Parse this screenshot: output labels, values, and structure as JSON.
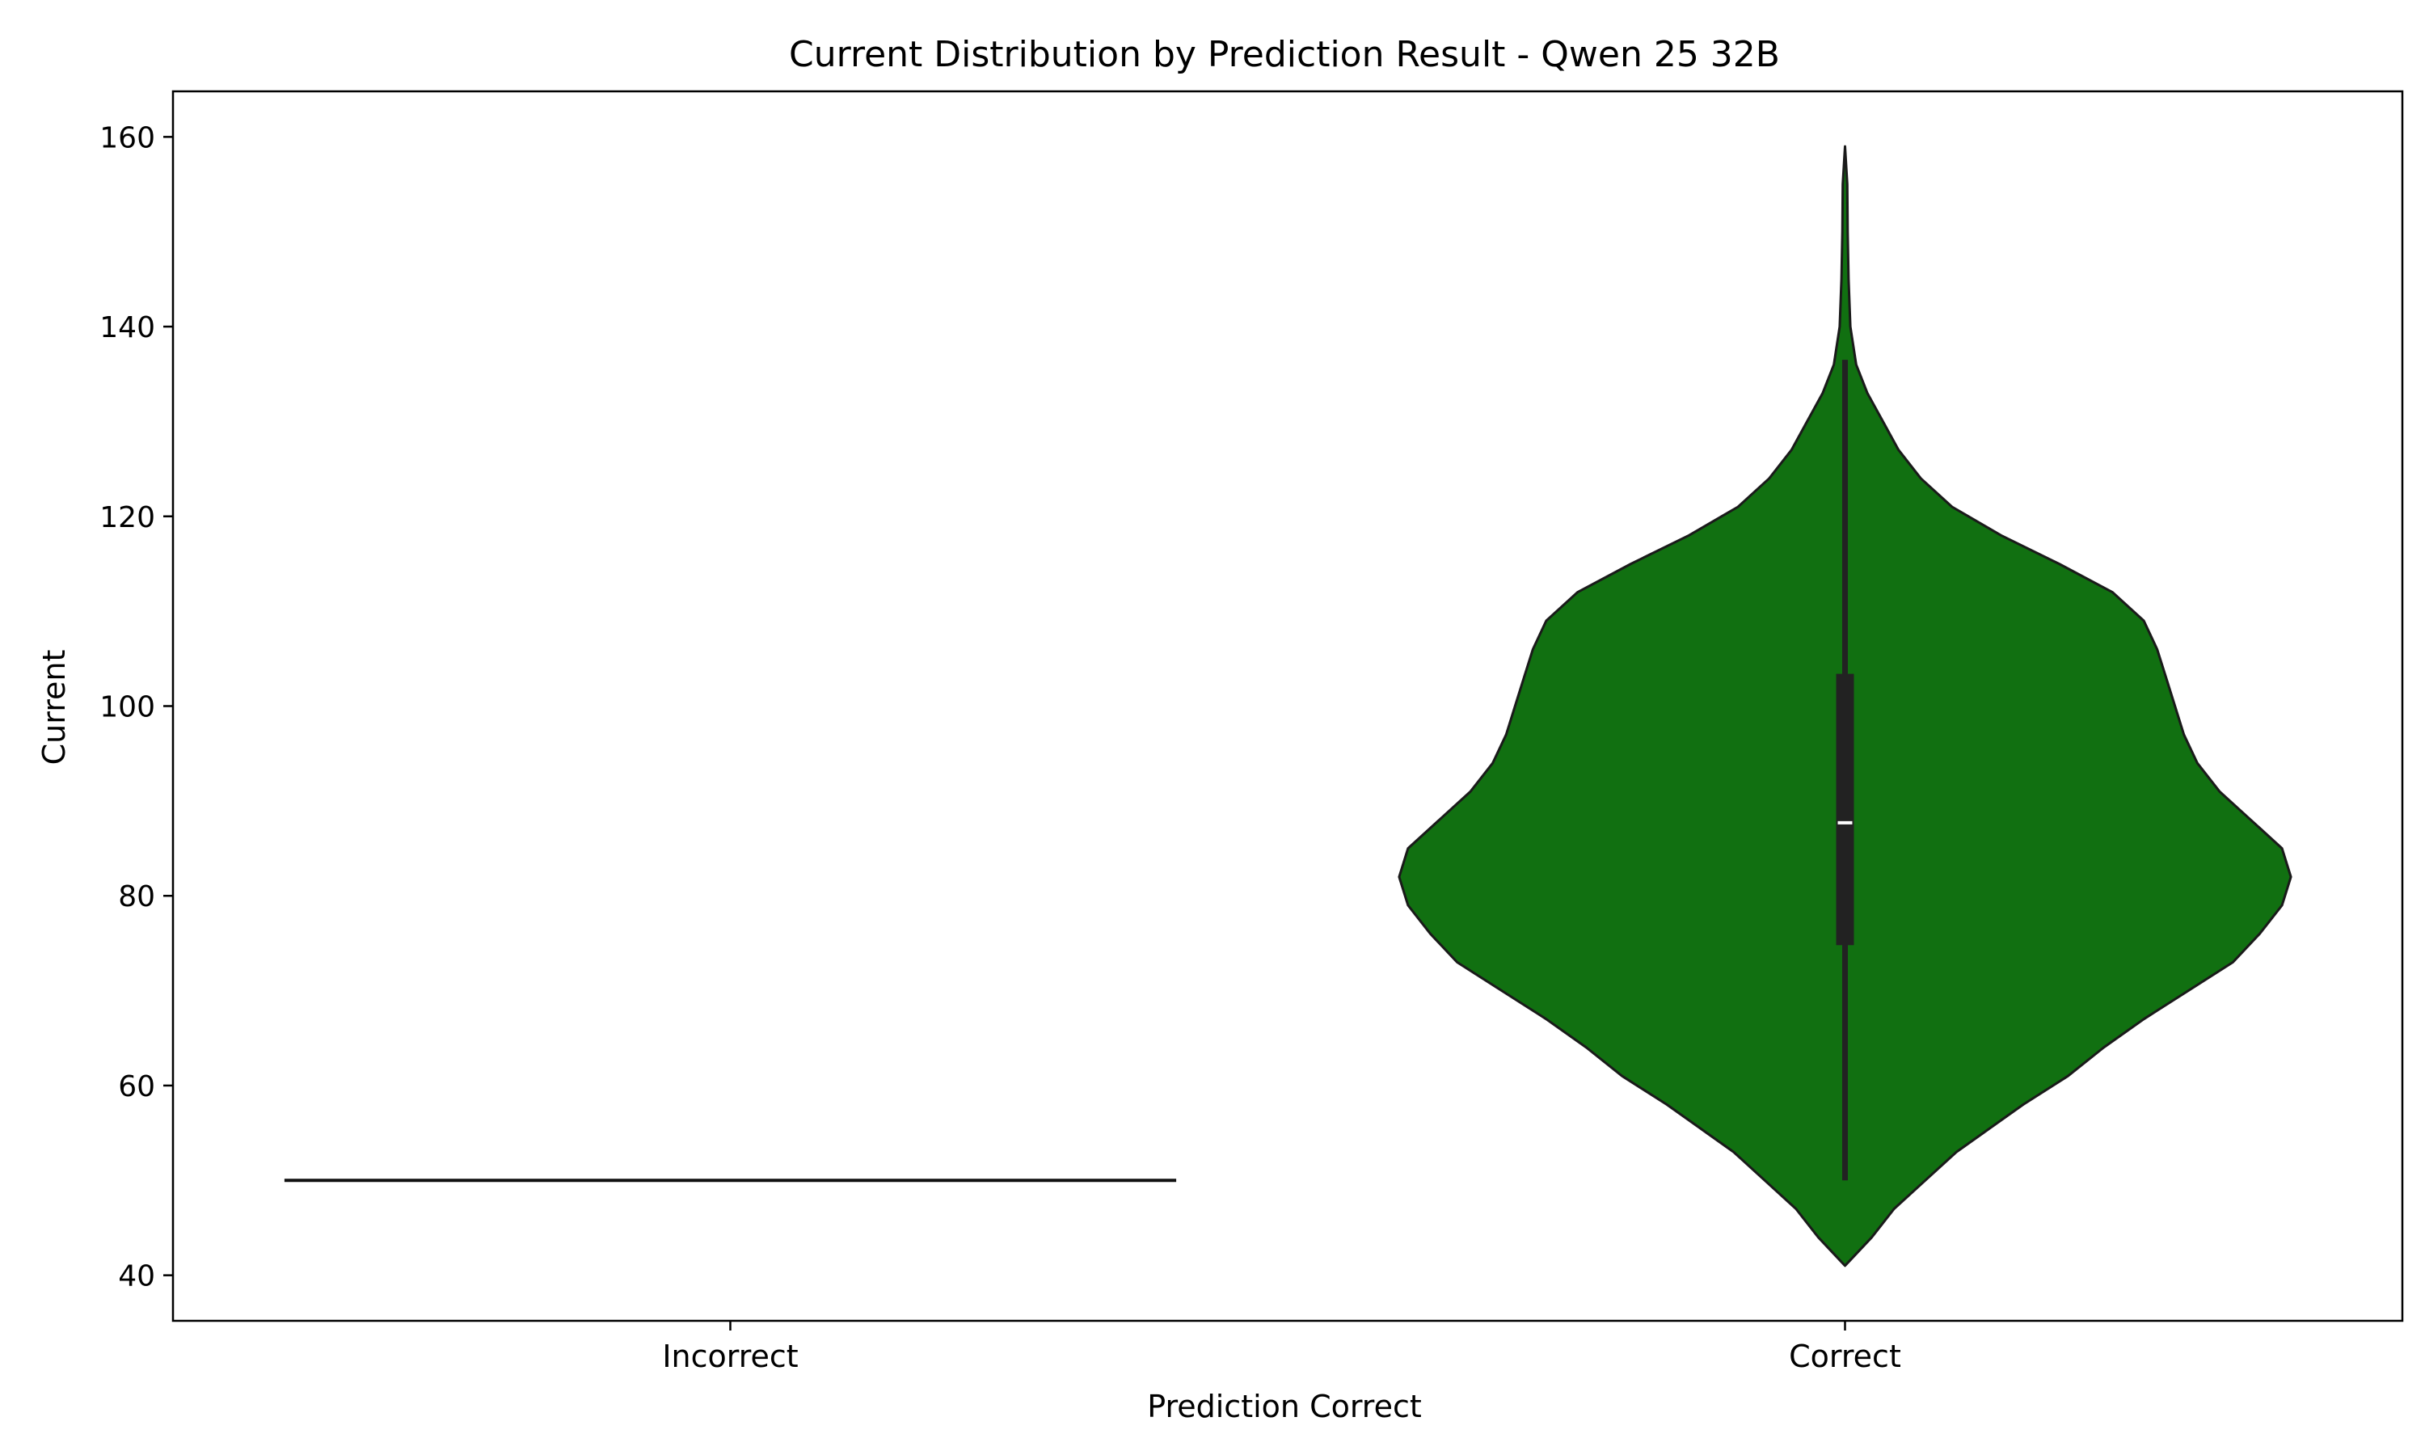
{
  "chart_data": {
    "type": "violin",
    "title": "Current Distribution by Prediction Result - Qwen 25 32B",
    "xlabel": "Prediction Correct",
    "ylabel": "Current",
    "categories": [
      "Incorrect",
      "Correct"
    ],
    "ylim": [
      35.2,
      164.8
    ],
    "yticks": [
      40,
      60,
      80,
      100,
      120,
      140,
      160
    ],
    "grid": false,
    "colors": {
      "correct_fill": "#117011",
      "outline": "#1a1a1a",
      "box": "#222222",
      "median": "#ffffff"
    },
    "violins": [
      {
        "category": "Incorrect",
        "single_value": 50,
        "note_count": 1
      },
      {
        "category": "Correct",
        "min": 50,
        "q1": 74.8,
        "median": 87.7,
        "q3": 103.4,
        "whisker_high": 136.5,
        "kde_min": 41,
        "kde_max": 159,
        "density": [
          [
            41,
            0.0
          ],
          [
            42,
            0.02
          ],
          [
            44,
            0.06
          ],
          [
            47,
            0.11
          ],
          [
            50,
            0.18
          ],
          [
            53,
            0.25
          ],
          [
            55,
            0.31
          ],
          [
            58,
            0.4
          ],
          [
            61,
            0.5
          ],
          [
            64,
            0.58
          ],
          [
            67,
            0.67
          ],
          [
            70,
            0.77
          ],
          [
            73,
            0.87
          ],
          [
            76,
            0.93
          ],
          [
            79,
            0.98
          ],
          [
            82,
            1.0
          ],
          [
            85,
            0.98
          ],
          [
            88,
            0.91
          ],
          [
            91,
            0.84
          ],
          [
            94,
            0.79
          ],
          [
            97,
            0.76
          ],
          [
            100,
            0.74
          ],
          [
            103,
            0.72
          ],
          [
            106,
            0.7
          ],
          [
            109,
            0.67
          ],
          [
            112,
            0.6
          ],
          [
            115,
            0.48
          ],
          [
            118,
            0.35
          ],
          [
            121,
            0.24
          ],
          [
            124,
            0.17
          ],
          [
            127,
            0.12
          ],
          [
            130,
            0.085
          ],
          [
            133,
            0.05
          ],
          [
            136,
            0.025
          ],
          [
            140,
            0.012
          ],
          [
            145,
            0.008
          ],
          [
            150,
            0.006
          ],
          [
            155,
            0.005
          ],
          [
            159,
            0.0
          ]
        ]
      }
    ]
  }
}
